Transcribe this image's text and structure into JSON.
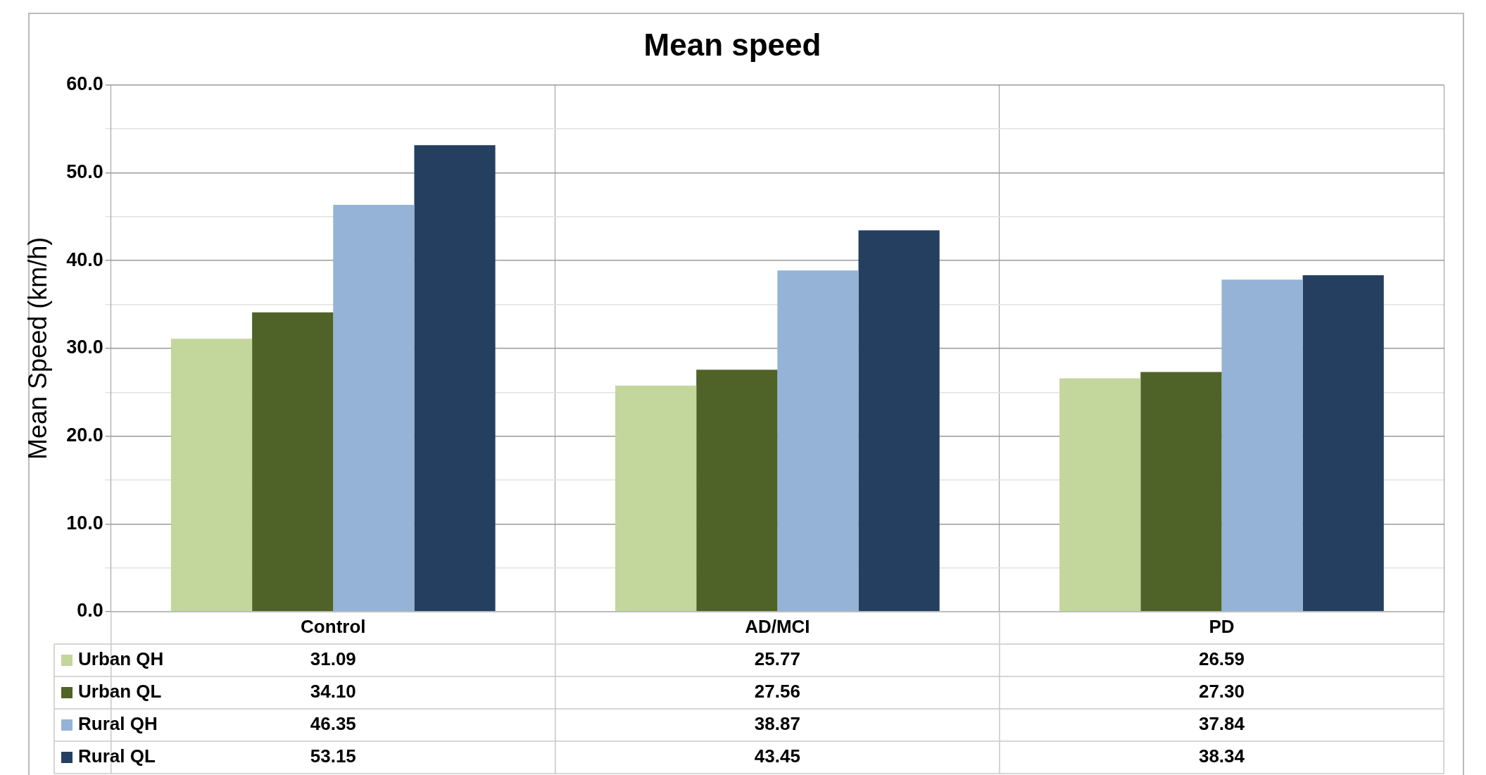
{
  "chart_data": {
    "type": "bar",
    "title": "Mean speed",
    "ylabel": "Mean Speed (km/h)",
    "categories": [
      "Control",
      "AD/MCI",
      "PD"
    ],
    "series": [
      {
        "name": "Urban QH",
        "color": "#c3d69b",
        "values": [
          31.09,
          25.77,
          26.59
        ],
        "value_labels": [
          "31.09",
          "25.77",
          "26.59"
        ]
      },
      {
        "name": "Urban QL",
        "color": "#4f6228",
        "values": [
          34.1,
          27.56,
          27.3
        ],
        "value_labels": [
          "34.10",
          "27.56",
          "27.30"
        ]
      },
      {
        "name": "Rural QH",
        "color": "#95b3d7",
        "values": [
          46.35,
          38.87,
          37.84
        ],
        "value_labels": [
          "46.35",
          "38.87",
          "37.84"
        ]
      },
      {
        "name": "Rural QL",
        "color": "#243f60",
        "values": [
          53.15,
          43.45,
          38.34
        ],
        "value_labels": [
          "53.15",
          "43.45",
          "38.34"
        ]
      }
    ],
    "ylim": [
      0,
      60
    ],
    "yticks": [
      {
        "value": 0,
        "label": "0.0"
      },
      {
        "value": 5,
        "label": null
      },
      {
        "value": 10,
        "label": "10.0"
      },
      {
        "value": 15,
        "label": null
      },
      {
        "value": 20,
        "label": "20.0"
      },
      {
        "value": 25,
        "label": null
      },
      {
        "value": 30,
        "label": "30.0"
      },
      {
        "value": 35,
        "label": null
      },
      {
        "value": 40,
        "label": "40.0"
      },
      {
        "value": 45,
        "label": null
      },
      {
        "value": 50,
        "label": "50.0"
      },
      {
        "value": 55,
        "label": null
      },
      {
        "value": 60,
        "label": "60.0"
      }
    ],
    "grid": true,
    "legend": "bottom"
  }
}
